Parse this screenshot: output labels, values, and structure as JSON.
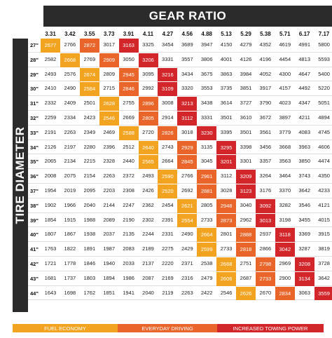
{
  "header": {
    "title": "GEAR RATIO",
    "side_title": "TIRE DIAMETER"
  },
  "table": {
    "columns": [
      "3.31",
      "3.42",
      "3.55",
      "3.73",
      "3.91",
      "4.11",
      "4.27",
      "4.56",
      "4.88",
      "5.13",
      "5.29",
      "5.38",
      "5.71",
      "6.17",
      "7.17"
    ],
    "rows": [
      {
        "label": "27\"",
        "values": [
          2677,
          2766,
          2872,
          3017,
          3163,
          3325,
          3454,
          3689,
          3947,
          4150,
          4279,
          4352,
          4619,
          4991,
          5800
        ],
        "highlight": [
          0,
          2,
          4
        ]
      },
      {
        "label": "28\"",
        "values": [
          2582,
          2668,
          2769,
          2909,
          3050,
          3206,
          3331,
          3557,
          3806,
          4001,
          4126,
          4196,
          4454,
          4813,
          5593
        ],
        "highlight": [
          1,
          3,
          5
        ]
      },
      {
        "label": "29\"",
        "values": [
          2493,
          2576,
          2674,
          2809,
          2945,
          3095,
          3216,
          3434,
          3675,
          3863,
          3984,
          4052,
          4300,
          4647,
          5400
        ],
        "highlight": [
          2,
          4,
          6
        ]
      },
      {
        "label": "30\"",
        "values": [
          2410,
          2490,
          2584,
          2715,
          2846,
          2992,
          3109,
          3320,
          3553,
          3735,
          3851,
          3917,
          4157,
          4492,
          5220
        ],
        "highlight": [
          2,
          4,
          6
        ]
      },
      {
        "label": "31\"",
        "values": [
          2332,
          2409,
          2501,
          2628,
          2755,
          2896,
          3008,
          3213,
          3438,
          3614,
          3727,
          3790,
          4023,
          4347,
          5051
        ],
        "highlight": [
          3,
          5,
          7
        ]
      },
      {
        "label": "32\"",
        "values": [
          2259,
          2334,
          2423,
          2546,
          2669,
          2805,
          2914,
          3112,
          3331,
          3501,
          3610,
          3672,
          3897,
          4211,
          4894
        ],
        "highlight": [
          3,
          5,
          7
        ]
      },
      {
        "label": "33\"",
        "values": [
          2191,
          2263,
          2349,
          2469,
          2588,
          2720,
          2826,
          3018,
          3230,
          3395,
          3501,
          3561,
          3779,
          4083,
          4745
        ],
        "highlight": [
          4,
          6,
          8
        ]
      },
      {
        "label": "34\"",
        "values": [
          2126,
          2197,
          2280,
          2396,
          2512,
          2640,
          2743,
          2929,
          3135,
          3295,
          3398,
          3456,
          3668,
          3963,
          4606
        ],
        "highlight": [
          5,
          7,
          9
        ]
      },
      {
        "label": "35\"",
        "values": [
          2065,
          2134,
          2215,
          2328,
          2440,
          2565,
          2664,
          2845,
          3045,
          3201,
          3301,
          3357,
          3563,
          3850,
          4474
        ],
        "highlight": [
          5,
          7,
          9
        ]
      },
      {
        "label": "36\"",
        "values": [
          2008,
          2075,
          2154,
          2263,
          2372,
          2493,
          2590,
          2766,
          2961,
          3112,
          3209,
          3264,
          3464,
          3743,
          4350
        ],
        "highlight": [
          6,
          8,
          10
        ]
      },
      {
        "label": "37\"",
        "values": [
          1954,
          2019,
          2095,
          2203,
          2308,
          2426,
          2520,
          2692,
          2881,
          3028,
          3123,
          3176,
          3370,
          3642,
          4233
        ],
        "highlight": [
          6,
          8,
          10
        ]
      },
      {
        "label": "38\"",
        "values": [
          1902,
          1966,
          2040,
          2144,
          2247,
          2362,
          2454,
          2621,
          2805,
          2948,
          3040,
          3092,
          3282,
          3546,
          4121
        ],
        "highlight": [
          7,
          9,
          11
        ]
      },
      {
        "label": "39\"",
        "values": [
          1854,
          1915,
          1988,
          2089,
          2190,
          2302,
          2391,
          2554,
          2733,
          2873,
          2962,
          3013,
          3198,
          3455,
          4015
        ],
        "highlight": [
          7,
          9,
          11
        ]
      },
      {
        "label": "40\"",
        "values": [
          1807,
          1867,
          1938,
          2037,
          2135,
          2244,
          2331,
          2490,
          2664,
          2801,
          2888,
          2937,
          3118,
          3369,
          3915
        ],
        "highlight": [
          8,
          10,
          12
        ]
      },
      {
        "label": "41\"",
        "values": [
          1763,
          1822,
          1891,
          1987,
          2083,
          2189,
          2275,
          2429,
          2599,
          2733,
          2818,
          2866,
          3042,
          3287,
          3819
        ],
        "highlight": [
          8,
          10,
          12
        ]
      },
      {
        "label": "42\"",
        "values": [
          1721,
          1778,
          1846,
          1940,
          2033,
          2137,
          2220,
          2371,
          2538,
          2668,
          2751,
          2798,
          2969,
          3208,
          3728
        ],
        "highlight": [
          9,
          11,
          13
        ]
      },
      {
        "label": "43\"",
        "values": [
          1681,
          1737,
          1803,
          1894,
          1986,
          2087,
          2169,
          2316,
          2479,
          2606,
          2687,
          2733,
          2900,
          3134,
          3642
        ],
        "highlight": [
          9,
          11,
          13
        ]
      },
      {
        "label": "44\"",
        "values": [
          1643,
          1698,
          1762,
          1851,
          1941,
          2040,
          2119,
          2263,
          2422,
          2546,
          2626,
          2670,
          2834,
          3063,
          3559
        ],
        "highlight": [
          10,
          12,
          14
        ]
      }
    ]
  },
  "legend": [
    {
      "label": "FUEL ECONOMY",
      "color": "#f2a31f"
    },
    {
      "label": "EVERYDAY DRIVING",
      "color": "#e9652a"
    },
    {
      "label": "INCREASED TOWING POWER",
      "color": "#d3262b"
    }
  ]
}
